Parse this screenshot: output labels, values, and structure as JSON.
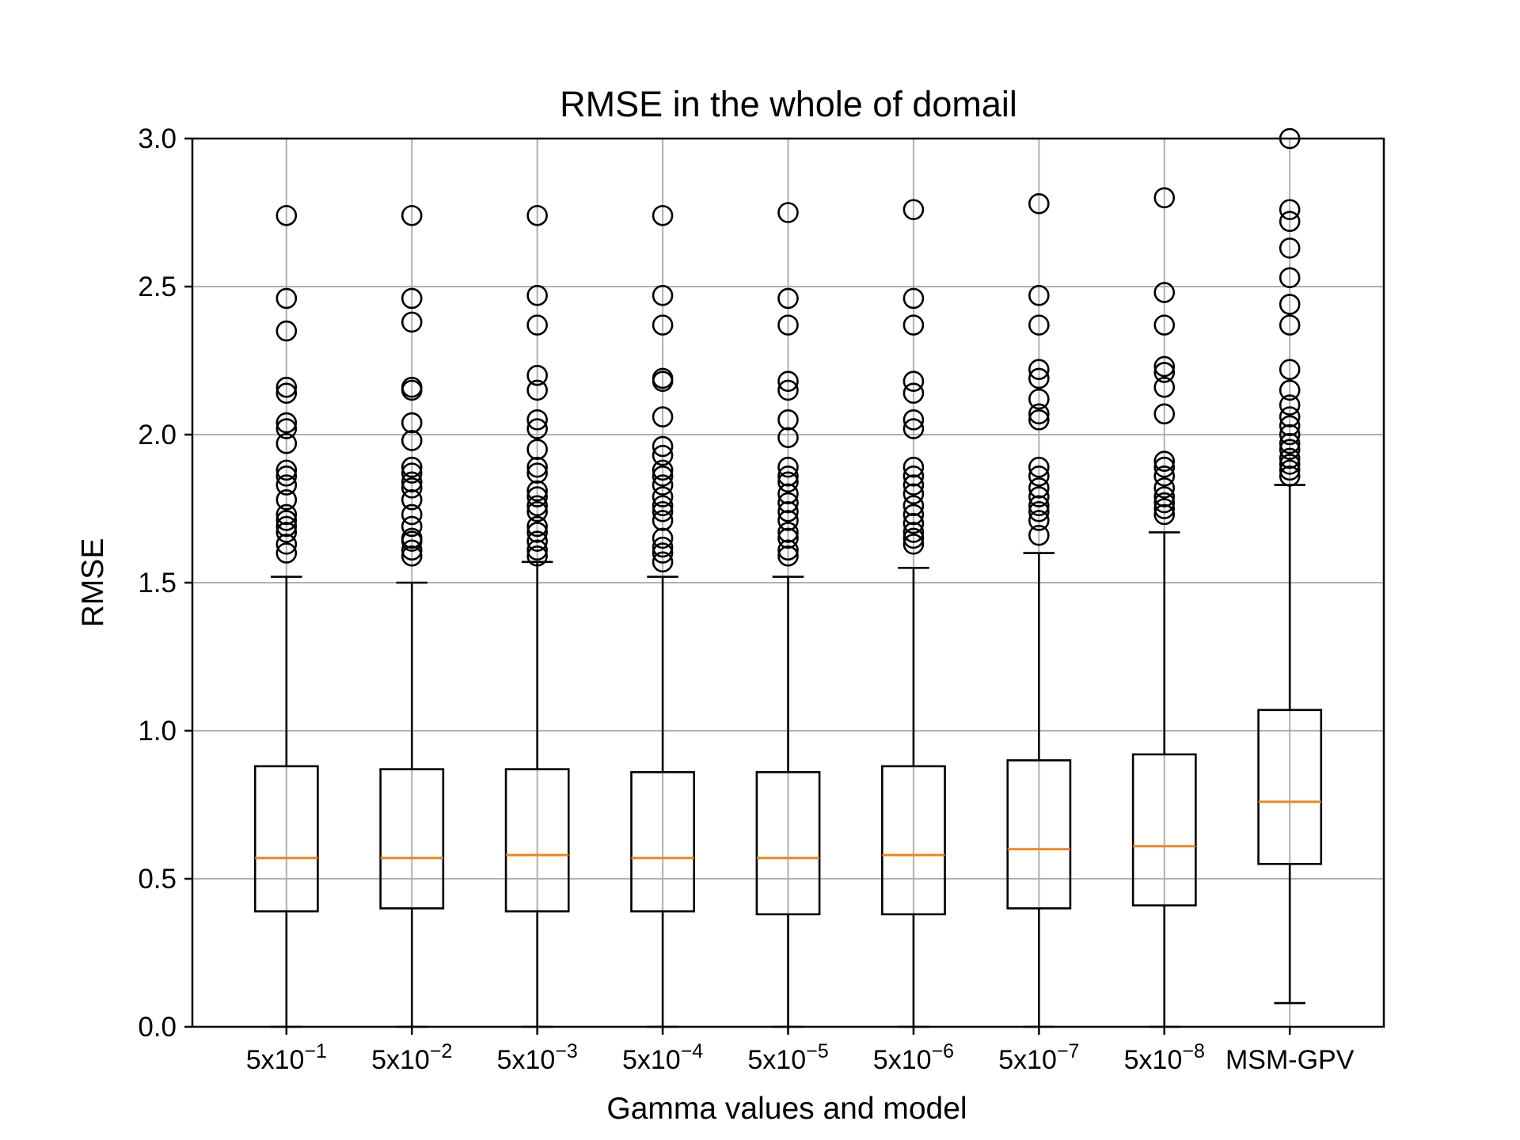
{
  "chart_data": {
    "type": "box",
    "title": "RMSE in the whole of domail",
    "xlabel": "Gamma values and model",
    "ylabel": "RMSE",
    "ylim": [
      0.0,
      3.0
    ],
    "yticks": [
      "0.0",
      "0.5",
      "1.0",
      "1.5",
      "2.0",
      "2.5",
      "3.0"
    ],
    "grid": true,
    "median_color": "#ff7f0e",
    "categories": [
      {
        "base": "5x10",
        "exp": "−1"
      },
      {
        "base": "5x10",
        "exp": "−2"
      },
      {
        "base": "5x10",
        "exp": "−3"
      },
      {
        "base": "5x10",
        "exp": "−4"
      },
      {
        "base": "5x10",
        "exp": "−5"
      },
      {
        "base": "5x10",
        "exp": "−6"
      },
      {
        "base": "5x10",
        "exp": "−7"
      },
      {
        "base": "5x10",
        "exp": "−8"
      },
      {
        "base": "MSM-GPV",
        "exp": ""
      }
    ],
    "boxes": [
      {
        "whislo": 0.0,
        "q1": 0.39,
        "med": 0.57,
        "q3": 0.88,
        "whishi": 1.52,
        "fliers": [
          1.6,
          1.63,
          1.67,
          1.69,
          1.71,
          1.73,
          1.78,
          1.83,
          1.86,
          1.88,
          1.97,
          2.02,
          2.04,
          2.14,
          2.16,
          2.35,
          2.46,
          2.74
        ]
      },
      {
        "whislo": 0.0,
        "q1": 0.4,
        "med": 0.57,
        "q3": 0.87,
        "whishi": 1.5,
        "fliers": [
          1.59,
          1.61,
          1.64,
          1.65,
          1.69,
          1.73,
          1.78,
          1.82,
          1.84,
          1.87,
          1.89,
          1.98,
          2.04,
          2.15,
          2.16,
          2.38,
          2.46,
          2.74
        ]
      },
      {
        "whislo": 0.0,
        "q1": 0.39,
        "med": 0.58,
        "q3": 0.87,
        "whishi": 1.57,
        "fliers": [
          1.59,
          1.61,
          1.64,
          1.67,
          1.69,
          1.74,
          1.76,
          1.79,
          1.81,
          1.87,
          1.89,
          1.95,
          2.02,
          2.05,
          2.15,
          2.2,
          2.37,
          2.47,
          2.74
        ]
      },
      {
        "whislo": 0.0,
        "q1": 0.39,
        "med": 0.57,
        "q3": 0.86,
        "whishi": 1.52,
        "fliers": [
          1.57,
          1.6,
          1.62,
          1.65,
          1.71,
          1.74,
          1.76,
          1.79,
          1.83,
          1.86,
          1.88,
          1.93,
          1.96,
          2.06,
          2.18,
          2.19,
          2.37,
          2.47,
          2.74
        ]
      },
      {
        "whislo": 0.0,
        "q1": 0.38,
        "med": 0.57,
        "q3": 0.86,
        "whishi": 1.52,
        "fliers": [
          1.59,
          1.61,
          1.65,
          1.67,
          1.71,
          1.74,
          1.77,
          1.8,
          1.84,
          1.86,
          1.89,
          1.99,
          2.05,
          2.15,
          2.18,
          2.37,
          2.46,
          2.75
        ]
      },
      {
        "whislo": 0.0,
        "q1": 0.38,
        "med": 0.58,
        "q3": 0.88,
        "whishi": 1.55,
        "fliers": [
          1.63,
          1.65,
          1.67,
          1.7,
          1.73,
          1.76,
          1.8,
          1.83,
          1.86,
          1.89,
          2.02,
          2.05,
          2.14,
          2.18,
          2.37,
          2.46,
          2.76
        ]
      },
      {
        "whislo": 0.0,
        "q1": 0.4,
        "med": 0.6,
        "q3": 0.9,
        "whishi": 1.6,
        "fliers": [
          1.66,
          1.71,
          1.74,
          1.76,
          1.79,
          1.82,
          1.86,
          1.89,
          2.05,
          2.07,
          2.12,
          2.19,
          2.22,
          2.37,
          2.47,
          2.78
        ]
      },
      {
        "whislo": 0.0,
        "q1": 0.41,
        "med": 0.61,
        "q3": 0.92,
        "whishi": 1.67,
        "fliers": [
          1.73,
          1.75,
          1.77,
          1.79,
          1.82,
          1.86,
          1.89,
          1.91,
          2.07,
          2.16,
          2.21,
          2.23,
          2.37,
          2.48,
          2.8
        ]
      },
      {
        "whislo": 0.08,
        "q1": 0.55,
        "med": 0.76,
        "q3": 1.07,
        "whishi": 1.83,
        "fliers": [
          1.86,
          1.88,
          1.9,
          1.92,
          1.95,
          1.97,
          2.0,
          2.03,
          2.06,
          2.1,
          2.15,
          2.22,
          2.37,
          2.44,
          2.53,
          2.63,
          2.72,
          2.76,
          3.0
        ]
      }
    ]
  }
}
